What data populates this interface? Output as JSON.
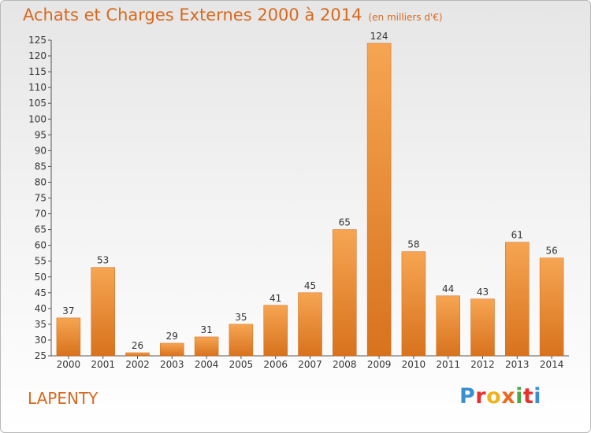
{
  "header": {
    "title": "Achats et Charges Externes 2000 à 2014",
    "unit": "(en milliers d'€)"
  },
  "footer": {
    "town": "LAPENTY",
    "logo_text": "Proxiti",
    "logo_colors": [
      "#3a8fd0",
      "#e8302d",
      "#f0b320",
      "#ea6a22",
      "#4aa845",
      "#e8302d",
      "#3a8fd0"
    ]
  },
  "chart_data": {
    "type": "bar",
    "title": "Achats et Charges Externes 2000 à 2014",
    "subtitle": "(en milliers d'€)",
    "categories": [
      "2000",
      "2001",
      "2002",
      "2003",
      "2004",
      "2005",
      "2006",
      "2007",
      "2008",
      "2009",
      "2010",
      "2011",
      "2012",
      "2013",
      "2014"
    ],
    "values": [
      37,
      53,
      26,
      29,
      31,
      35,
      41,
      45,
      65,
      124,
      58,
      44,
      43,
      61,
      56
    ],
    "ylim": [
      25,
      125
    ],
    "yticks": [
      25,
      30,
      35,
      40,
      45,
      50,
      55,
      60,
      65,
      70,
      75,
      80,
      85,
      90,
      95,
      100,
      105,
      110,
      115,
      120,
      125
    ],
    "grid": false,
    "bar_color": "#ef8a2c",
    "text_color": "#d8691e"
  }
}
